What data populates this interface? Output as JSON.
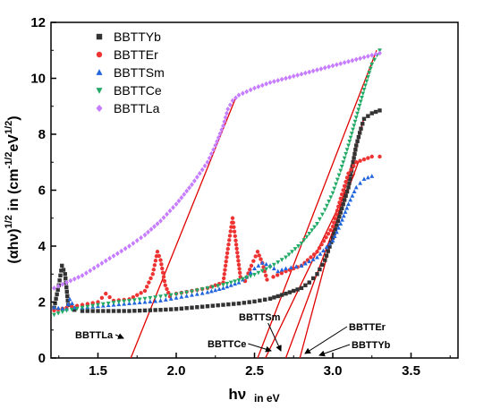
{
  "chart_data": {
    "type": "scatter",
    "xlabel": "hν",
    "xlabel_sub": "in eV",
    "ylabel": "(αhν)",
    "ylabel_sup": "1/2",
    "ylabel_rest": " in (cm",
    "ylabel_sup2": "-1/2",
    "ylabel_rest2": "eV",
    "ylabel_sup3": "1/2",
    "ylabel_end": ")",
    "xlim": [
      1.2,
      3.8
    ],
    "ylim": [
      0,
      12
    ],
    "xticks": [
      1.5,
      2.0,
      2.5,
      3.0,
      3.5
    ],
    "xtick_labels": [
      "1.5",
      "2.0",
      "2.5",
      "3.0",
      "3.5"
    ],
    "yticks": [
      0,
      2,
      4,
      6,
      8,
      10,
      12
    ],
    "ytick_labels": [
      "0",
      "2",
      "4",
      "6",
      "8",
      "10",
      "12"
    ],
    "legend_position": "top-left",
    "series": [
      {
        "name": "BBTTYb",
        "color": "#333333",
        "marker": "square",
        "x": [
          1.22,
          1.25,
          1.27,
          1.29,
          1.31,
          1.35,
          1.4,
          1.5,
          1.6,
          1.7,
          1.8,
          1.9,
          2.0,
          2.1,
          2.2,
          2.3,
          2.4,
          2.5,
          2.6,
          2.7,
          2.8,
          2.85,
          2.9,
          2.95,
          3.0,
          3.05,
          3.1,
          3.13,
          3.15,
          3.18,
          3.2,
          3.25,
          3.3
        ],
        "y": [
          1.8,
          2.6,
          3.3,
          3.0,
          1.9,
          1.72,
          1.68,
          1.68,
          1.68,
          1.68,
          1.7,
          1.72,
          1.75,
          1.8,
          1.85,
          1.9,
          1.95,
          2.02,
          2.12,
          2.3,
          2.5,
          2.7,
          3.0,
          3.5,
          4.3,
          5.2,
          6.1,
          7.0,
          7.6,
          8.2,
          8.55,
          8.75,
          8.85
        ]
      },
      {
        "name": "BBTTEr",
        "color": "#ee3333",
        "marker": "circle",
        "x": [
          1.22,
          1.3,
          1.4,
          1.5,
          1.55,
          1.6,
          1.7,
          1.8,
          1.85,
          1.88,
          1.9,
          1.93,
          1.96,
          2.0,
          2.1,
          2.2,
          2.3,
          2.33,
          2.36,
          2.38,
          2.41,
          2.44,
          2.48,
          2.52,
          2.55,
          2.58,
          2.62,
          2.7,
          2.8,
          2.9,
          3.0,
          3.05,
          3.1,
          3.15,
          3.2,
          3.25,
          3.3
        ],
        "y": [
          1.7,
          1.8,
          1.9,
          2.0,
          2.3,
          2.05,
          2.1,
          2.4,
          3.0,
          3.8,
          3.5,
          2.6,
          2.2,
          2.3,
          2.4,
          2.5,
          2.7,
          3.9,
          5.0,
          4.2,
          2.9,
          2.75,
          3.3,
          3.8,
          3.4,
          2.8,
          2.9,
          3.1,
          3.3,
          3.8,
          4.7,
          5.7,
          6.6,
          7.0,
          7.1,
          7.2,
          7.2
        ]
      },
      {
        "name": "BBTTSm",
        "color": "#2266dd",
        "marker": "triangle-up",
        "x": [
          1.22,
          1.3,
          1.32,
          1.35,
          1.4,
          1.5,
          1.6,
          1.7,
          1.8,
          1.9,
          2.0,
          2.1,
          2.2,
          2.3,
          2.4,
          2.45,
          2.5,
          2.55,
          2.6,
          2.65,
          2.7,
          2.8,
          2.9,
          3.0,
          3.05,
          3.1,
          3.15,
          3.2,
          3.25
        ],
        "y": [
          1.8,
          1.75,
          2.1,
          1.8,
          1.8,
          1.85,
          1.9,
          1.95,
          2.0,
          2.05,
          2.15,
          2.25,
          2.35,
          2.5,
          2.7,
          2.9,
          3.2,
          3.4,
          3.3,
          3.1,
          3.2,
          3.3,
          3.6,
          4.2,
          4.8,
          5.5,
          6.1,
          6.4,
          6.5
        ]
      },
      {
        "name": "BBTTCe",
        "color": "#22aa66",
        "marker": "triangle-down",
        "x": [
          1.22,
          1.3,
          1.4,
          1.5,
          1.6,
          1.7,
          1.8,
          1.9,
          2.0,
          2.1,
          2.2,
          2.3,
          2.4,
          2.5,
          2.6,
          2.7,
          2.8,
          2.9,
          2.95,
          3.0,
          3.05,
          3.1,
          3.15,
          3.2,
          3.25,
          3.3
        ],
        "y": [
          1.55,
          1.7,
          1.8,
          1.9,
          1.98,
          2.05,
          2.12,
          2.2,
          2.28,
          2.38,
          2.5,
          2.62,
          2.78,
          2.98,
          3.25,
          3.6,
          4.1,
          4.8,
          5.3,
          5.9,
          6.7,
          7.6,
          8.6,
          9.6,
          10.5,
          11.0
        ]
      },
      {
        "name": "BBTTLa",
        "color": "#c77dff",
        "marker": "diamond",
        "x": [
          1.22,
          1.3,
          1.4,
          1.5,
          1.6,
          1.7,
          1.8,
          1.9,
          2.0,
          2.1,
          2.2,
          2.25,
          2.3,
          2.33,
          2.36,
          2.38,
          2.4,
          2.5,
          2.6,
          2.7,
          2.8,
          2.9,
          3.0,
          3.1,
          3.2,
          3.3
        ],
        "y": [
          2.5,
          2.7,
          2.95,
          3.3,
          3.65,
          4.0,
          4.4,
          4.9,
          5.5,
          6.2,
          7.0,
          7.6,
          8.3,
          8.9,
          9.2,
          9.3,
          9.4,
          9.65,
          9.85,
          10.0,
          10.15,
          10.3,
          10.45,
          10.6,
          10.75,
          10.9
        ]
      }
    ],
    "fit_lines": [
      {
        "name": "BBTTLa",
        "x": [
          1.71,
          2.38
        ],
        "y": [
          0,
          9.3
        ]
      },
      {
        "name": "BBTTCe",
        "x": [
          2.52,
          3.28
        ],
        "y": [
          0,
          11.0
        ]
      },
      {
        "name": "BBTTSm",
        "x": [
          2.57,
          3.14
        ],
        "y": [
          0,
          6.6
        ]
      },
      {
        "name": "BBTTEr",
        "x": [
          2.7,
          3.17
        ],
        "y": [
          0,
          7.1
        ]
      },
      {
        "name": "BBTTYb",
        "x": [
          2.79,
          3.2
        ],
        "y": [
          0,
          8.6
        ]
      }
    ],
    "annotations": [
      {
        "text": "BBTTLa",
        "x": 1.7
      },
      {
        "text": "BBTTCe",
        "x": 2.52
      },
      {
        "text": "BBTTSm",
        "x": 2.57
      },
      {
        "text": "BBTTEr",
        "x": 2.7
      },
      {
        "text": "BBTTYb",
        "x": 2.79
      }
    ]
  }
}
